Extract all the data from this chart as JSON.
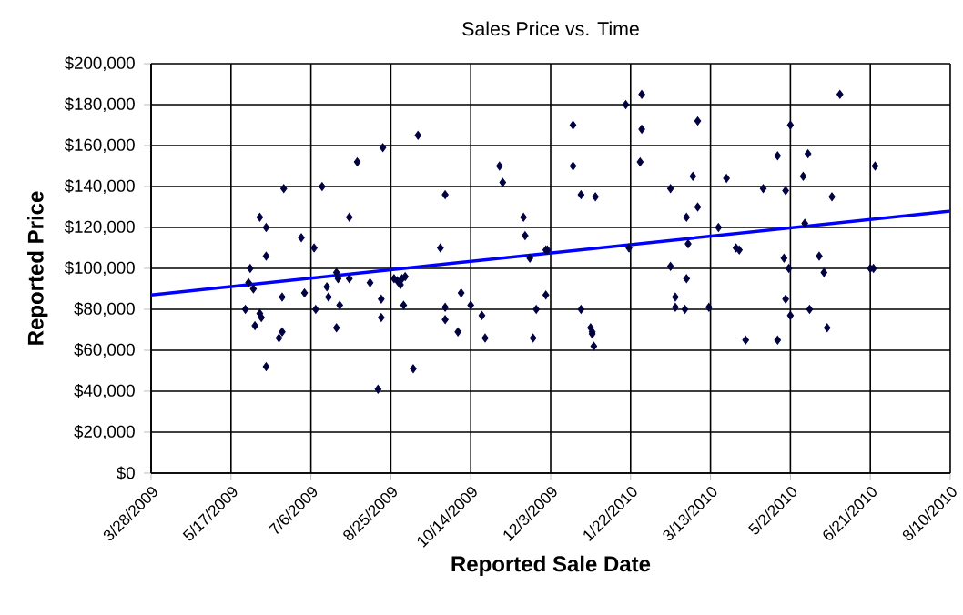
{
  "chart_data": {
    "type": "scatter",
    "title": "Sales Price vs. Time",
    "xlabel": "Reported Sale Date",
    "ylabel": "Reported Price",
    "xlim": [
      "2009-03-28",
      "2010-08-10"
    ],
    "xticks": [
      {
        "value": "2009-03-28",
        "label": "3/28/2009"
      },
      {
        "value": "2009-05-17",
        "label": "5/17/2009"
      },
      {
        "value": "2009-07-06",
        "label": "7/6/2009"
      },
      {
        "value": "2009-08-25",
        "label": "8/25/2009"
      },
      {
        "value": "2009-10-14",
        "label": "10/14/2009"
      },
      {
        "value": "2009-12-03",
        "label": "12/3/2009"
      },
      {
        "value": "2010-01-22",
        "label": "1/22/2010"
      },
      {
        "value": "2010-03-13",
        "label": "3/13/2010"
      },
      {
        "value": "2010-05-02",
        "label": "5/2/2010"
      },
      {
        "value": "2010-06-21",
        "label": "6/21/2010"
      },
      {
        "value": "2010-08-10",
        "label": "8/10/2010"
      }
    ],
    "ylim": [
      0,
      200000
    ],
    "yticks": [
      {
        "value": 0,
        "label": "$0"
      },
      {
        "value": 20000,
        "label": "$20,000"
      },
      {
        "value": 40000,
        "label": "$40,000"
      },
      {
        "value": 60000,
        "label": "$60,000"
      },
      {
        "value": 80000,
        "label": "$80,000"
      },
      {
        "value": 100000,
        "label": "$100,000"
      },
      {
        "value": 120000,
        "label": "$120,000"
      },
      {
        "value": 140000,
        "label": "$140,000"
      },
      {
        "value": 160000,
        "label": "$160,000"
      },
      {
        "value": 180000,
        "label": "$180,000"
      },
      {
        "value": 200000,
        "label": "$200,000"
      }
    ],
    "grid": true,
    "series": [
      {
        "marker": "diamond",
        "color": "#000040",
        "x": [
          "2009-05-26",
          "2009-05-28",
          "2009-05-29",
          "2009-05-31",
          "2009-06-01",
          "2009-06-04",
          "2009-06-04",
          "2009-06-05",
          "2009-06-08",
          "2009-06-08",
          "2009-06-08",
          "2009-06-16",
          "2009-06-18",
          "2009-06-18",
          "2009-06-19",
          "2009-06-30",
          "2009-07-02",
          "2009-07-08",
          "2009-07-09",
          "2009-07-13",
          "2009-07-16",
          "2009-07-17",
          "2009-07-22",
          "2009-07-22",
          "2009-07-23",
          "2009-07-24",
          "2009-07-30",
          "2009-07-30",
          "2009-08-04",
          "2009-08-12",
          "2009-08-17",
          "2009-08-19",
          "2009-08-19",
          "2009-08-20",
          "2009-08-27",
          "2009-08-29",
          "2009-08-31",
          "2009-09-01",
          "2009-09-02",
          "2009-09-03",
          "2009-09-08",
          "2009-09-11",
          "2009-09-25",
          "2009-09-28",
          "2009-09-28",
          "2009-09-28",
          "2009-10-06",
          "2009-10-08",
          "2009-10-14",
          "2009-10-21",
          "2009-10-23",
          "2009-11-01",
          "2009-11-03",
          "2009-11-16",
          "2009-11-17",
          "2009-11-20",
          "2009-11-22",
          "2009-11-24",
          "2009-11-30",
          "2009-11-30",
          "2009-12-01",
          "2009-12-17",
          "2009-12-17",
          "2009-12-22",
          "2009-12-22",
          "2009-12-28",
          "2009-12-29",
          "2009-12-29",
          "2009-12-30",
          "2009-12-31",
          "2010-01-19",
          "2010-01-21",
          "2010-01-28",
          "2010-01-29",
          "2010-01-29",
          "2010-02-16",
          "2010-02-16",
          "2010-02-19",
          "2010-02-19",
          "2010-02-25",
          "2010-02-26",
          "2010-02-26",
          "2010-02-27",
          "2010-03-02",
          "2010-03-05",
          "2010-03-05",
          "2010-03-12",
          "2010-03-18",
          "2010-03-23",
          "2010-03-29",
          "2010-03-31",
          "2010-04-04",
          "2010-04-15",
          "2010-04-24",
          "2010-04-24",
          "2010-04-28",
          "2010-04-29",
          "2010-04-29",
          "2010-05-01",
          "2010-05-02",
          "2010-05-02",
          "2010-05-10",
          "2010-05-11",
          "2010-05-13",
          "2010-05-14",
          "2010-05-20",
          "2010-05-23",
          "2010-05-25",
          "2010-05-28",
          "2010-06-02",
          "2010-06-21",
          "2010-06-23",
          "2010-06-24"
        ],
        "values": [
          80000,
          93000,
          100000,
          90000,
          72000,
          125000,
          78000,
          76000,
          120000,
          106000,
          52000,
          66000,
          69000,
          86000,
          139000,
          115000,
          88000,
          110000,
          80000,
          140000,
          91000,
          86000,
          71000,
          98000,
          95000,
          82000,
          125000,
          95000,
          152000,
          93000,
          41000,
          85000,
          76000,
          159000,
          95000,
          94000,
          92000,
          95000,
          82000,
          96000,
          51000,
          165000,
          110000,
          136000,
          81000,
          75000,
          69000,
          88000,
          82000,
          77000,
          66000,
          150000,
          142000,
          125000,
          116000,
          105000,
          66000,
          80000,
          87000,
          109000,
          109000,
          150000,
          170000,
          136000,
          80000,
          71000,
          69000,
          68000,
          62000,
          135000,
          180000,
          110000,
          152000,
          185000,
          168000,
          139000,
          101000,
          81000,
          86000,
          80000,
          95000,
          125000,
          112000,
          145000,
          130000,
          172000,
          81000,
          120000,
          144000,
          110000,
          109000,
          65000,
          139000,
          155000,
          65000,
          105000,
          138000,
          85000,
          100000,
          170000,
          77000,
          145000,
          122000,
          156000,
          80000,
          106000,
          98000,
          71000,
          135000,
          185000,
          100000,
          100000,
          150000
        ]
      },
      {
        "type": "line",
        "marker": "none",
        "color": "#0000ff",
        "x": [
          "2009-03-28",
          "2010-08-10"
        ],
        "values": [
          87000,
          128000
        ]
      }
    ]
  }
}
